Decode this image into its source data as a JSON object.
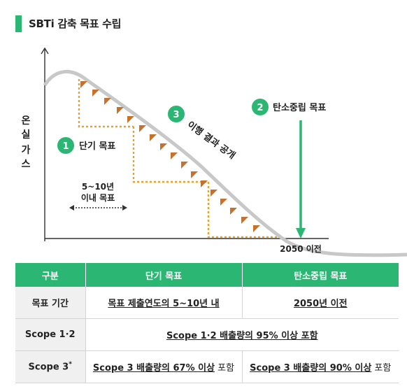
{
  "title": "SBTi 감축 목표 수립",
  "diagram": {
    "y_axis_label": [
      "온",
      "실",
      "가",
      "스"
    ],
    "step1": {
      "number": "1",
      "label": "단기 목표"
    },
    "step2": {
      "number": "2",
      "label": "탄소중립 목표"
    },
    "step3": {
      "number": "3",
      "label": "이행 결과 공개"
    },
    "range_label_line1": "5~10년",
    "range_label_line2": "이내 목표",
    "x_marker_label": "2050 이전"
  },
  "table": {
    "headers": [
      "구분",
      "단기 목표",
      "탄소중립 목표"
    ],
    "rows": [
      {
        "label": "목표 기간",
        "short_term": "목표 제출연도의 5~10년 내",
        "net_zero": "2050년 이전"
      },
      {
        "label": "Scope 1·2",
        "merged": "Scope 1·2 배출량의 95% 이상 포함"
      },
      {
        "label": "Scope 3",
        "label_mark": "*",
        "short_term_bold": "Scope 3 배출량의 67% 이상",
        "short_term_suffix": " 포함",
        "net_zero_bold": "Scope 3 배출량의 90% 이상",
        "net_zero_suffix": " 포함"
      }
    ]
  },
  "colors": {
    "green": "#2bb673",
    "orange": "#f0a020",
    "triangle": "#c8712c",
    "curve": "#c8c8c8"
  }
}
